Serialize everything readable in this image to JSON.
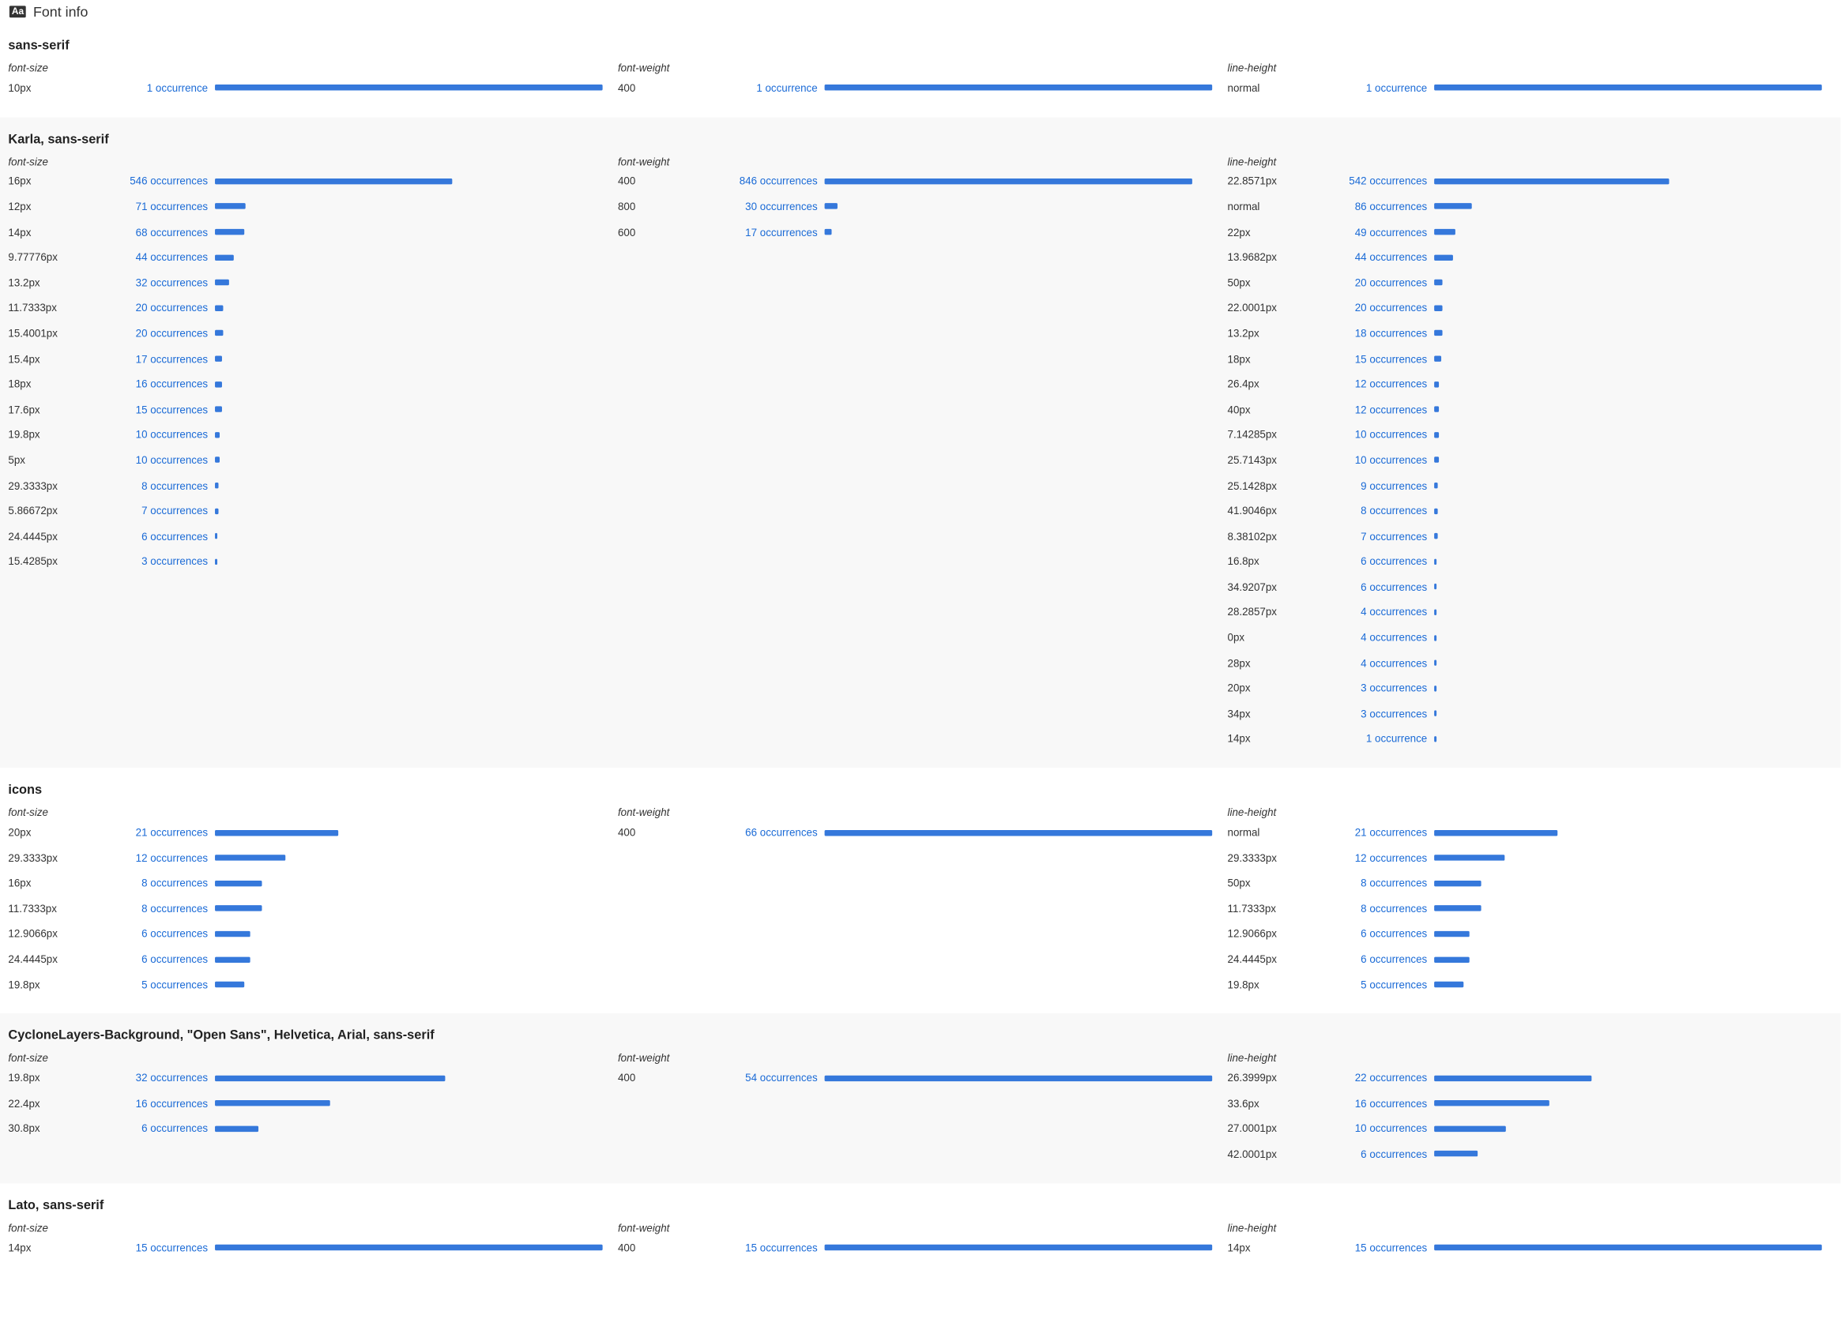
{
  "header": {
    "icon_label": "Aa",
    "title": "Font info"
  },
  "colors": {
    "bar": "#3578db",
    "occurrence_text": "#1a6ad6",
    "alt_background": "#f8f8f8"
  },
  "column_titles": [
    "font-size",
    "font-weight",
    "line-height"
  ],
  "families": [
    {
      "name": "sans-serif",
      "columns": [
        {
          "title": "font-size",
          "rows": [
            {
              "value": "10px",
              "label": "1 occurrence",
              "count": 1
            }
          ]
        },
        {
          "title": "font-weight",
          "rows": [
            {
              "value": "400",
              "label": "1 occurrence",
              "count": 1
            }
          ]
        },
        {
          "title": "line-height",
          "rows": [
            {
              "value": "normal",
              "label": "1 occurrence",
              "count": 1
            }
          ]
        }
      ]
    },
    {
      "name": "Karla, sans-serif",
      "columns": [
        {
          "title": "font-size",
          "rows": [
            {
              "value": "16px",
              "label": "546 occurrences",
              "count": 546
            },
            {
              "value": "12px",
              "label": "71 occurrences",
              "count": 71
            },
            {
              "value": "14px",
              "label": "68 occurrences",
              "count": 68
            },
            {
              "value": "9.77776px",
              "label": "44 occurrences",
              "count": 44
            },
            {
              "value": "13.2px",
              "label": "32 occurrences",
              "count": 32
            },
            {
              "value": "11.7333px",
              "label": "20 occurrences",
              "count": 20
            },
            {
              "value": "15.4001px",
              "label": "20 occurrences",
              "count": 20
            },
            {
              "value": "15.4px",
              "label": "17 occurrences",
              "count": 17
            },
            {
              "value": "18px",
              "label": "16 occurrences",
              "count": 16
            },
            {
              "value": "17.6px",
              "label": "15 occurrences",
              "count": 15
            },
            {
              "value": "19.8px",
              "label": "10 occurrences",
              "count": 10
            },
            {
              "value": "5px",
              "label": "10 occurrences",
              "count": 10
            },
            {
              "value": "29.3333px",
              "label": "8 occurrences",
              "count": 8
            },
            {
              "value": "5.86672px",
              "label": "7 occurrences",
              "count": 7
            },
            {
              "value": "24.4445px",
              "label": "6 occurrences",
              "count": 6
            },
            {
              "value": "15.4285px",
              "label": "3 occurrences",
              "count": 3
            }
          ]
        },
        {
          "title": "font-weight",
          "rows": [
            {
              "value": "400",
              "label": "846 occurrences",
              "count": 846
            },
            {
              "value": "800",
              "label": "30 occurrences",
              "count": 30
            },
            {
              "value": "600",
              "label": "17 occurrences",
              "count": 17
            }
          ]
        },
        {
          "title": "line-height",
          "rows": [
            {
              "value": "22.8571px",
              "label": "542 occurrences",
              "count": 542
            },
            {
              "value": "normal",
              "label": "86 occurrences",
              "count": 86
            },
            {
              "value": "22px",
              "label": "49 occurrences",
              "count": 49
            },
            {
              "value": "13.9682px",
              "label": "44 occurrences",
              "count": 44
            },
            {
              "value": "50px",
              "label": "20 occurrences",
              "count": 20
            },
            {
              "value": "22.0001px",
              "label": "20 occurrences",
              "count": 20
            },
            {
              "value": "13.2px",
              "label": "18 occurrences",
              "count": 18
            },
            {
              "value": "18px",
              "label": "15 occurrences",
              "count": 15
            },
            {
              "value": "26.4px",
              "label": "12 occurrences",
              "count": 12
            },
            {
              "value": "40px",
              "label": "12 occurrences",
              "count": 12
            },
            {
              "value": "7.14285px",
              "label": "10 occurrences",
              "count": 10
            },
            {
              "value": "25.7143px",
              "label": "10 occurrences",
              "count": 10
            },
            {
              "value": "25.1428px",
              "label": "9 occurrences",
              "count": 9
            },
            {
              "value": "41.9046px",
              "label": "8 occurrences",
              "count": 8
            },
            {
              "value": "8.38102px",
              "label": "7 occurrences",
              "count": 7
            },
            {
              "value": "16.8px",
              "label": "6 occurrences",
              "count": 6
            },
            {
              "value": "34.9207px",
              "label": "6 occurrences",
              "count": 6
            },
            {
              "value": "28.2857px",
              "label": "4 occurrences",
              "count": 4
            },
            {
              "value": "0px",
              "label": "4 occurrences",
              "count": 4
            },
            {
              "value": "28px",
              "label": "4 occurrences",
              "count": 4
            },
            {
              "value": "20px",
              "label": "3 occurrences",
              "count": 3
            },
            {
              "value": "34px",
              "label": "3 occurrences",
              "count": 3
            },
            {
              "value": "14px",
              "label": "1 occurrence",
              "count": 1
            }
          ]
        }
      ]
    },
    {
      "name": "icons",
      "columns": [
        {
          "title": "font-size",
          "rows": [
            {
              "value": "20px",
              "label": "21 occurrences",
              "count": 21
            },
            {
              "value": "29.3333px",
              "label": "12 occurrences",
              "count": 12
            },
            {
              "value": "16px",
              "label": "8 occurrences",
              "count": 8
            },
            {
              "value": "11.7333px",
              "label": "8 occurrences",
              "count": 8
            },
            {
              "value": "12.9066px",
              "label": "6 occurrences",
              "count": 6
            },
            {
              "value": "24.4445px",
              "label": "6 occurrences",
              "count": 6
            },
            {
              "value": "19.8px",
              "label": "5 occurrences",
              "count": 5
            }
          ]
        },
        {
          "title": "font-weight",
          "rows": [
            {
              "value": "400",
              "label": "66 occurrences",
              "count": 66
            }
          ]
        },
        {
          "title": "line-height",
          "rows": [
            {
              "value": "normal",
              "label": "21 occurrences",
              "count": 21
            },
            {
              "value": "29.3333px",
              "label": "12 occurrences",
              "count": 12
            },
            {
              "value": "50px",
              "label": "8 occurrences",
              "count": 8
            },
            {
              "value": "11.7333px",
              "label": "8 occurrences",
              "count": 8
            },
            {
              "value": "12.9066px",
              "label": "6 occurrences",
              "count": 6
            },
            {
              "value": "24.4445px",
              "label": "6 occurrences",
              "count": 6
            },
            {
              "value": "19.8px",
              "label": "5 occurrences",
              "count": 5
            }
          ]
        }
      ]
    },
    {
      "name": "CycloneLayers-Background, \"Open Sans\", Helvetica, Arial, sans-serif",
      "columns": [
        {
          "title": "font-size",
          "rows": [
            {
              "value": "19.8px",
              "label": "32 occurrences",
              "count": 32
            },
            {
              "value": "22.4px",
              "label": "16 occurrences",
              "count": 16
            },
            {
              "value": "30.8px",
              "label": "6 occurrences",
              "count": 6
            }
          ]
        },
        {
          "title": "font-weight",
          "rows": [
            {
              "value": "400",
              "label": "54 occurrences",
              "count": 54
            }
          ]
        },
        {
          "title": "line-height",
          "rows": [
            {
              "value": "26.3999px",
              "label": "22 occurrences",
              "count": 22
            },
            {
              "value": "33.6px",
              "label": "16 occurrences",
              "count": 16
            },
            {
              "value": "27.0001px",
              "label": "10 occurrences",
              "count": 10
            },
            {
              "value": "42.0001px",
              "label": "6 occurrences",
              "count": 6
            }
          ]
        }
      ]
    },
    {
      "name": "Lato, sans-serif",
      "columns": [
        {
          "title": "font-size",
          "rows": [
            {
              "value": "14px",
              "label": "15 occurrences",
              "count": 15
            }
          ]
        },
        {
          "title": "font-weight",
          "rows": [
            {
              "value": "400",
              "label": "15 occurrences",
              "count": 15
            }
          ]
        },
        {
          "title": "line-height",
          "rows": [
            {
              "value": "14px",
              "label": "15 occurrences",
              "count": 15
            }
          ]
        }
      ]
    }
  ]
}
